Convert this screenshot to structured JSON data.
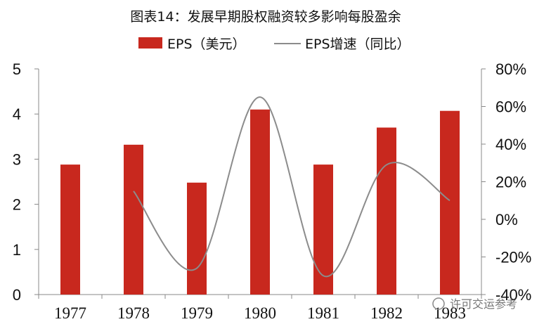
{
  "chart_data": {
    "type": "bar",
    "title": "图表14：发展早期股权融资较多影响每股盈余",
    "categories": [
      "1977",
      "1978",
      "1979",
      "1980",
      "1981",
      "1982",
      "1983"
    ],
    "series": [
      {
        "name": "EPS（美元）",
        "type": "bar",
        "axis": "left",
        "color": "#c8281e",
        "values": [
          2.88,
          3.32,
          2.48,
          4.1,
          2.88,
          3.7,
          4.07
        ]
      },
      {
        "name": "EPS增速（同比）",
        "type": "line",
        "axis": "right",
        "color": "#8c8c8c",
        "values": [
          null,
          15,
          -26,
          65,
          -30,
          29,
          10
        ]
      }
    ],
    "y_left": {
      "min": 0,
      "max": 5,
      "ticks": [
        "0",
        "1",
        "2",
        "3",
        "4",
        "5"
      ]
    },
    "y_right": {
      "min": -40,
      "max": 80,
      "ticks": [
        "-40%",
        "-20%",
        "0%",
        "20%",
        "40%",
        "60%",
        "80%"
      ]
    },
    "legend_position": "top",
    "grid": false
  },
  "watermark": "许可交运参考"
}
